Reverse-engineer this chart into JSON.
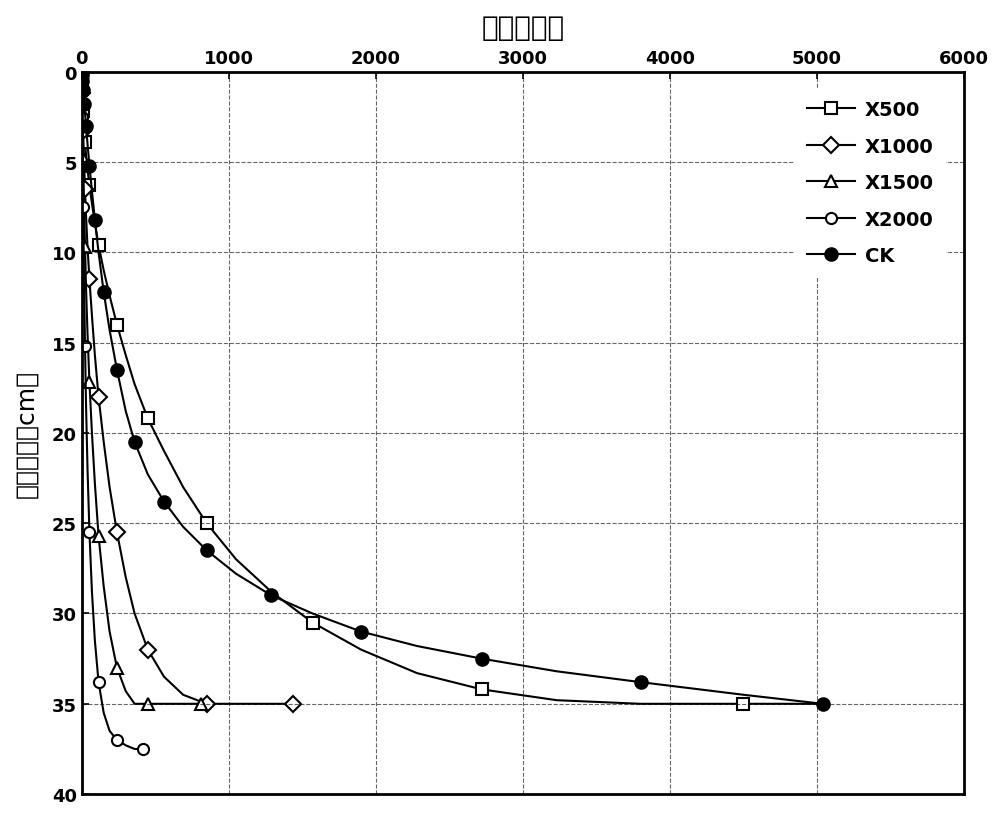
{
  "title": "时间（分）",
  "ylabel": "入渗深度（cm）",
  "xlim": [
    0,
    6000
  ],
  "ylim": [
    40,
    0
  ],
  "xticks": [
    0,
    1000,
    2000,
    3000,
    4000,
    5000,
    6000
  ],
  "yticks": [
    0,
    5,
    10,
    15,
    20,
    25,
    30,
    35,
    40
  ],
  "series": {
    "X500": {
      "x": [
        0,
        1,
        2,
        3,
        5,
        7,
        10,
        14,
        18,
        23,
        30,
        40,
        53,
        70,
        90,
        115,
        150,
        190,
        240,
        300,
        360,
        450,
        560,
        690,
        850,
        1050,
        1290,
        1570,
        1900,
        2280,
        2720,
        3230,
        3800,
        4500,
        5040
      ],
      "y": [
        0,
        0.3,
        0.6,
        0.9,
        1.3,
        1.7,
        2.2,
        2.8,
        3.3,
        3.9,
        4.6,
        5.4,
        6.3,
        7.3,
        8.4,
        9.6,
        11.0,
        12.4,
        14.0,
        15.7,
        17.3,
        19.2,
        21.0,
        23.0,
        25.0,
        27.0,
        28.8,
        30.5,
        32.0,
        33.3,
        34.2,
        34.8,
        35.0,
        35.0,
        35.0
      ]
    },
    "X1000": {
      "x": [
        0,
        1,
        2,
        3,
        5,
        7,
        10,
        14,
        18,
        23,
        30,
        40,
        53,
        70,
        90,
        115,
        150,
        190,
        240,
        300,
        360,
        450,
        560,
        690,
        850,
        1050,
        1290,
        1440
      ],
      "y": [
        0,
        0.4,
        0.8,
        1.2,
        1.8,
        2.5,
        3.3,
        4.3,
        5.3,
        6.5,
        8.0,
        9.7,
        11.5,
        13.5,
        15.7,
        18.0,
        20.5,
        23.0,
        25.5,
        28.0,
        30.0,
        32.0,
        33.5,
        34.5,
        35.0,
        35.0,
        35.0,
        35.0
      ]
    },
    "X1500": {
      "x": [
        0,
        1,
        2,
        3,
        5,
        7,
        10,
        14,
        18,
        23,
        30,
        40,
        53,
        70,
        90,
        115,
        150,
        190,
        240,
        300,
        360,
        450,
        560,
        690,
        810
      ],
      "y": [
        0,
        0.5,
        1.0,
        1.6,
        2.5,
        3.5,
        4.8,
        6.3,
        7.9,
        9.7,
        12.0,
        14.5,
        17.2,
        20.0,
        22.8,
        25.7,
        28.5,
        31.0,
        33.0,
        34.3,
        35.0,
        35.0,
        35.0,
        35.0,
        35.0
      ]
    },
    "X2000": {
      "x": [
        0,
        1,
        2,
        3,
        5,
        7,
        10,
        14,
        18,
        23,
        30,
        40,
        53,
        70,
        90,
        115,
        150,
        190,
        240,
        300,
        360,
        420
      ],
      "y": [
        0,
        0.7,
        1.5,
        2.5,
        3.9,
        5.5,
        7.5,
        10.0,
        12.5,
        15.2,
        18.5,
        22.0,
        25.5,
        28.8,
        31.5,
        33.8,
        35.5,
        36.5,
        37.0,
        37.3,
        37.5,
        37.5
      ]
    },
    "CK": {
      "x": [
        0,
        1,
        2,
        3,
        5,
        7,
        10,
        14,
        18,
        23,
        30,
        40,
        53,
        70,
        90,
        115,
        150,
        190,
        240,
        300,
        360,
        450,
        560,
        690,
        850,
        1050,
        1290,
        1570,
        1900,
        2280,
        2720,
        3230,
        3800,
        4500,
        5040
      ],
      "y": [
        0,
        0.1,
        0.2,
        0.3,
        0.5,
        0.7,
        1.0,
        1.4,
        1.8,
        2.3,
        3.0,
        4.0,
        5.2,
        6.6,
        8.2,
        10.0,
        12.2,
        14.3,
        16.5,
        18.8,
        20.5,
        22.3,
        23.8,
        25.2,
        26.5,
        27.8,
        29.0,
        30.0,
        31.0,
        31.8,
        32.5,
        33.2,
        33.8,
        34.5,
        35.0
      ]
    }
  },
  "legend_order": [
    "X500",
    "X1000",
    "X1500",
    "X2000",
    "CK"
  ],
  "background_color": "#ffffff",
  "font_color": "#000000"
}
